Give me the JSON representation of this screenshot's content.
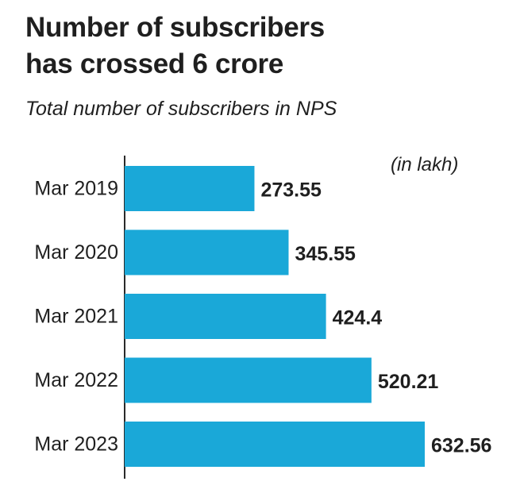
{
  "chart_data": {
    "type": "bar",
    "orientation": "horizontal",
    "title_lines": [
      "Number of subscribers",
      "has crossed 6 crore"
    ],
    "subtitle": "Total number of subscribers in NPS",
    "unit_note": "(in lakh)",
    "categories": [
      "Mar 2019",
      "Mar 2020",
      "Mar 2021",
      "Mar 2022",
      "Mar 2023"
    ],
    "values": [
      273.55,
      345.55,
      424.4,
      520.21,
      632.56
    ],
    "value_labels": [
      "273.55",
      "345.55",
      "424.4",
      "520.21",
      "632.56"
    ],
    "bar_color": "#1aa8d8",
    "xlim": [
      0,
      632.56
    ],
    "grid": false,
    "legend": "none"
  }
}
